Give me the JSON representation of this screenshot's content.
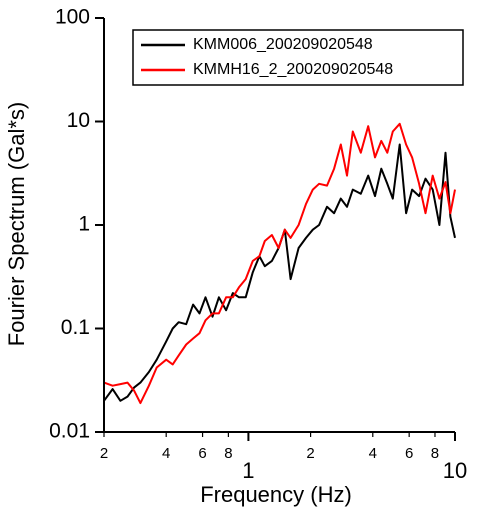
{
  "chart_data": {
    "type": "line",
    "xlabel": "Frequency (Hz)",
    "ylabel": "Fourier Spectrum (Gal*s)",
    "xscale": "log",
    "yscale": "log",
    "xlim": [
      0.2,
      10
    ],
    "ylim": [
      0.01,
      100
    ],
    "xticks": [
      {
        "value": 0.2,
        "label": "2"
      },
      {
        "value": 0.4,
        "label": "4"
      },
      {
        "value": 0.6,
        "label": "6"
      },
      {
        "value": 0.8,
        "label": "8"
      },
      1,
      2,
      4,
      6,
      8,
      10
    ],
    "yticks": [
      0.01,
      0.1,
      1,
      10,
      100
    ],
    "legend": "upper right",
    "x": [
      0.2,
      0.22,
      0.24,
      0.26,
      0.28,
      0.3,
      0.33,
      0.36,
      0.4,
      0.43,
      0.46,
      0.5,
      0.54,
      0.58,
      0.62,
      0.67,
      0.72,
      0.78,
      0.84,
      0.9,
      0.97,
      1.05,
      1.13,
      1.2,
      1.3,
      1.4,
      1.5,
      1.6,
      1.75,
      1.9,
      2.05,
      2.2,
      2.4,
      2.6,
      2.8,
      3,
      3.2,
      3.5,
      3.8,
      4.1,
      4.4,
      4.7,
      5,
      5.4,
      5.8,
      6.2,
      6.7,
      7.2,
      7.8,
      8.4,
      9,
      9.5,
      10
    ],
    "series": [
      {
        "name": "KMM006_200209020548",
        "color": "#000000",
        "values": [
          0.02,
          0.026,
          0.02,
          0.022,
          0.027,
          0.03,
          0.038,
          0.05,
          0.075,
          0.1,
          0.115,
          0.11,
          0.17,
          0.14,
          0.2,
          0.13,
          0.2,
          0.15,
          0.22,
          0.2,
          0.2,
          0.35,
          0.5,
          0.4,
          0.45,
          0.6,
          0.9,
          0.3,
          0.6,
          0.75,
          0.9,
          1.0,
          1.5,
          1.3,
          1.8,
          1.5,
          2.2,
          2.0,
          3.0,
          1.9,
          3.5,
          2.5,
          1.8,
          6.0,
          1.3,
          2.2,
          1.9,
          2.8,
          2.2,
          1.0,
          5.0,
          1.2,
          0.75
        ]
      },
      {
        "name": "KMMH16_2_200209020548",
        "color": "#ff0000",
        "values": [
          0.03,
          0.028,
          0.029,
          0.03,
          0.025,
          0.019,
          0.028,
          0.042,
          0.05,
          0.045,
          0.055,
          0.07,
          0.08,
          0.09,
          0.12,
          0.14,
          0.14,
          0.2,
          0.2,
          0.25,
          0.3,
          0.45,
          0.5,
          0.7,
          0.8,
          0.6,
          0.9,
          0.75,
          1.0,
          1.6,
          2.2,
          2.5,
          2.4,
          3.5,
          6.0,
          3.0,
          8.0,
          5.0,
          9.0,
          4.5,
          6.5,
          5.0,
          8.0,
          9.5,
          6.0,
          4.5,
          2.5,
          1.3,
          3.0,
          1.8,
          2.6,
          1.3,
          2.2
        ]
      }
    ]
  }
}
